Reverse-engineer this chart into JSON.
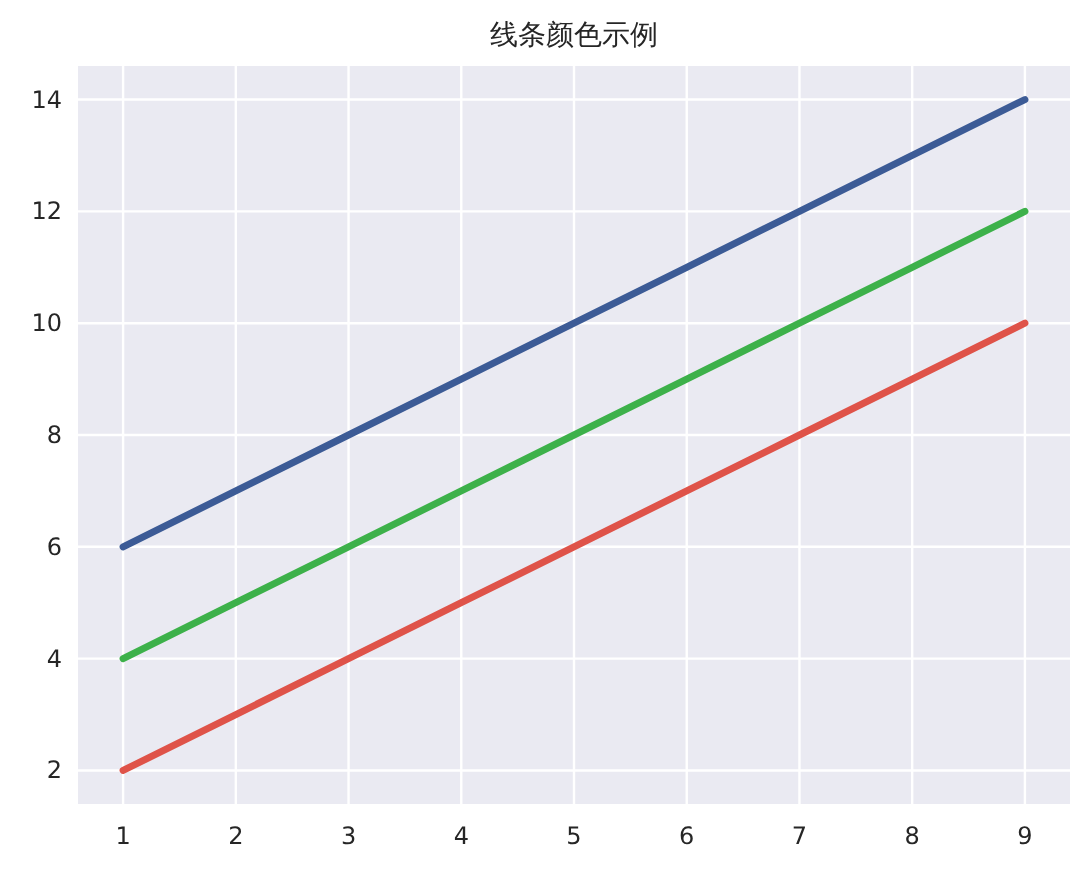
{
  "chart_data": {
    "type": "line",
    "title": "线条颜色示例",
    "x": [
      1,
      2,
      3,
      4,
      5,
      6,
      7,
      8,
      9
    ],
    "series": [
      {
        "color": "#3c5b96",
        "values": [
          6,
          7,
          8,
          9,
          10,
          11,
          12,
          13,
          14
        ]
      },
      {
        "color": "#3db14a",
        "values": [
          4,
          5,
          6,
          7,
          8,
          9,
          10,
          11,
          12
        ]
      },
      {
        "color": "#df5349",
        "values": [
          2,
          3,
          4,
          5,
          6,
          7,
          8,
          9,
          10
        ]
      }
    ],
    "xlim": [
      0.6,
      9.4
    ],
    "ylim": [
      1.4,
      14.6
    ],
    "xticks": [
      1,
      2,
      3,
      4,
      5,
      6,
      7,
      8,
      9
    ],
    "yticks": [
      2,
      4,
      6,
      8,
      10,
      12,
      14
    ],
    "grid": true,
    "marker": "none",
    "line_style": "solid"
  }
}
